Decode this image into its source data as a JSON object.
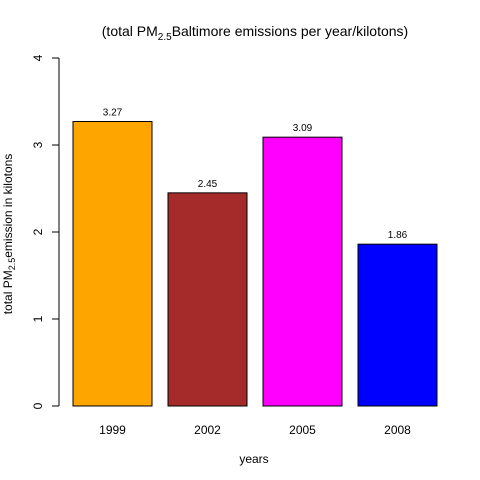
{
  "chart_data": {
    "type": "bar",
    "title": {
      "prefix": "(total PM",
      "sub": "2.5",
      "suffix": "Baltimore emissions per year/kilotons)"
    },
    "xlabel": "years",
    "ylabel": {
      "prefix": "total PM",
      "sub": "2.5",
      "suffix": "emission in kilotons"
    },
    "categories": [
      "1999",
      "2002",
      "2005",
      "2008"
    ],
    "values": [
      3.27,
      2.45,
      3.09,
      1.86
    ],
    "data_labels": [
      "3.27",
      "2.45",
      "3.09",
      "1.86"
    ],
    "colors": [
      "#FFA500",
      "#A52A2A",
      "#FF00FF",
      "#0000FF"
    ],
    "ylim": [
      0,
      4
    ],
    "yticks": [
      0,
      1,
      2,
      3,
      4
    ],
    "grid": false,
    "legend": "none"
  }
}
